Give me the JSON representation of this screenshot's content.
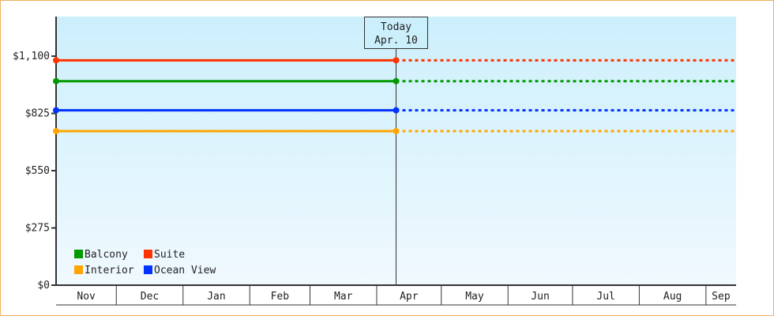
{
  "chart_data": {
    "type": "line",
    "title": "",
    "xlabel": "",
    "ylabel": "",
    "ylim": [
      0,
      1290
    ],
    "yticks": [
      0,
      275,
      550,
      825,
      1100
    ],
    "ytick_labels": [
      "$0",
      "$275",
      "$550",
      "$825",
      "$1,100"
    ],
    "x_range": [
      "11-03",
      "09-15"
    ],
    "months": [
      "Nov",
      "Dec",
      "Jan",
      "Feb",
      "Mar",
      "Apr",
      "May",
      "Jun",
      "Jul",
      "Aug",
      "Sep"
    ],
    "grid": false,
    "legend_placement": "bottom-left",
    "today": {
      "date": "04-10",
      "label_line1": "Today",
      "label_line2": "Apr. 10"
    },
    "series": [
      {
        "name": "Balcony",
        "color": "#009900",
        "value": 980
      },
      {
        "name": "Suite",
        "color": "#ff3300",
        "value": 1080
      },
      {
        "name": "Interior",
        "color": "#ffa500",
        "value": 740
      },
      {
        "name": "Ocean View",
        "color": "#0033ff",
        "value": 840
      }
    ],
    "note": "Solid before today, dotted after today (projection)"
  }
}
